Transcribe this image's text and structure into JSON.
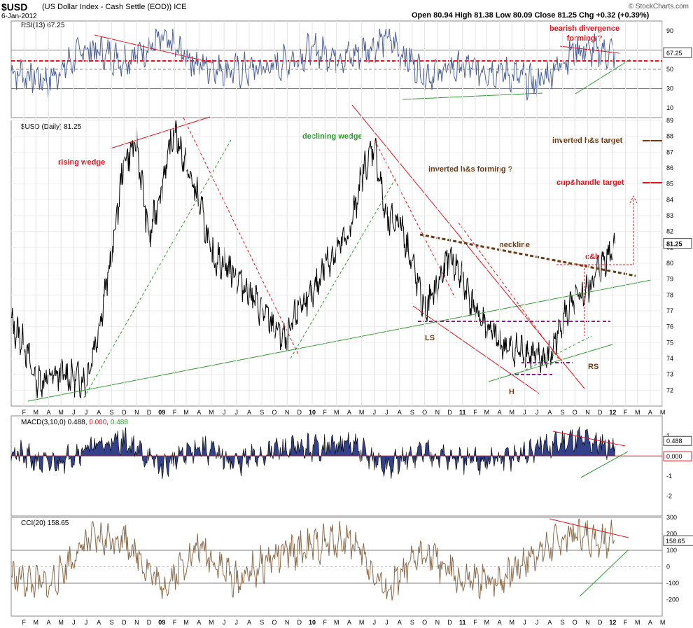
{
  "header": {
    "symbol": "$USD",
    "name": "(US Dollar Index - Cash Settle (EOD)) ICE",
    "date": "6-Jan-2012",
    "ohlc": "Open 80.94  High 81.38  Low 80.09  Close 81.25  Chg +0.32 (+0.39%)",
    "brand": "© StockCharts.com"
  },
  "colors": {
    "price": "#000000",
    "rsi": "#4a5f94",
    "macd_fill": "#33418a",
    "cci": "#8b6b4a",
    "red": "#e8101a",
    "green": "#2e9a2e",
    "brown": "#6b3a10",
    "purple": "#8a1a8a"
  },
  "chart_data": [
    {
      "type": "line",
      "title": "RSI(13) 67.25",
      "ylim": [
        0,
        100
      ],
      "yticks": [
        90,
        70,
        50,
        30,
        10
      ],
      "levels": [
        70,
        50,
        30
      ],
      "last_value_label": "67.25",
      "annotations": [
        "bearish divergence",
        "forming ?"
      ],
      "x": [
        "2008-01",
        "2008-04",
        "2008-07",
        "2008-10",
        "2009-01",
        "2009-04",
        "2009-07",
        "2009-10",
        "2010-01",
        "2010-04",
        "2010-07",
        "2010-10",
        "2011-01",
        "2011-04",
        "2011-07",
        "2011-10",
        "2012-01"
      ],
      "values": [
        48,
        38,
        72,
        60,
        80,
        55,
        48,
        52,
        70,
        62,
        82,
        45,
        52,
        48,
        35,
        70,
        67
      ]
    },
    {
      "type": "line",
      "title": "$USD (Daily) 81.25",
      "ylim": [
        71,
        89
      ],
      "yticks": [
        89,
        88,
        87,
        86,
        85,
        84,
        83,
        82,
        81,
        80,
        79,
        78,
        77,
        76,
        75,
        74,
        73,
        72
      ],
      "last_value_label": "81.25",
      "annotations": {
        "rising_wedge": "rising wedge",
        "declining_wedge": "declining wedge",
        "ihs_forming": "inverted h&s forming ?",
        "ihs_target": "inverted h&s target",
        "cup_target": "cup&handle target",
        "neckline": "neckline",
        "ch": "c&h",
        "ls": "LS",
        "h": "H",
        "rs": "RS"
      },
      "x": [
        "2008-01",
        "2008-02",
        "2008-03",
        "2008-04",
        "2008-05",
        "2008-06",
        "2008-07",
        "2008-08",
        "2008-09",
        "2008-10",
        "2008-11",
        "2008-12",
        "2009-01",
        "2009-02",
        "2009-03",
        "2009-04",
        "2009-05",
        "2009-06",
        "2009-07",
        "2009-08",
        "2009-09",
        "2009-10",
        "2009-11",
        "2009-12",
        "2010-01",
        "2010-02",
        "2010-03",
        "2010-04",
        "2010-05",
        "2010-06",
        "2010-07",
        "2010-08",
        "2010-09",
        "2010-10",
        "2010-11",
        "2010-12",
        "2011-01",
        "2011-02",
        "2011-03",
        "2011-04",
        "2011-05",
        "2011-06",
        "2011-07",
        "2011-08",
        "2011-09",
        "2011-10",
        "2011-11",
        "2011-12",
        "2012-01"
      ],
      "values": [
        76.2,
        75.0,
        72.5,
        72.8,
        73.0,
        72.8,
        72.6,
        76.0,
        80.5,
        86.5,
        87.5,
        81.5,
        85.0,
        88.5,
        86.0,
        84.0,
        80.5,
        80.0,
        79.2,
        78.2,
        77.0,
        76.0,
        75.0,
        77.5,
        77.8,
        80.0,
        80.8,
        81.8,
        85.5,
        87.5,
        82.5,
        82.8,
        80.0,
        77.0,
        78.5,
        80.5,
        79.0,
        77.0,
        76.0,
        75.0,
        74.5,
        74.5,
        74.0,
        74.0,
        76.5,
        77.5,
        78.3,
        79.8,
        81.25
      ],
      "x_axis_labels": [
        "F",
        "M",
        "A",
        "M",
        "J",
        "J",
        "A",
        "S",
        "O",
        "N",
        "D",
        "09",
        "F",
        "M",
        "A",
        "M",
        "J",
        "J",
        "A",
        "S",
        "O",
        "N",
        "D",
        "10",
        "F",
        "M",
        "A",
        "M",
        "J",
        "J",
        "A",
        "S",
        "O",
        "N",
        "D",
        "11",
        "F",
        "M",
        "A",
        "M",
        "J",
        "J",
        "A",
        "S",
        "O",
        "N",
        "D",
        "12",
        "F",
        "M",
        "A",
        "M"
      ]
    },
    {
      "type": "line",
      "title": "MACD(3,10,0) 0.488, 0.000, 0.488",
      "title_parts": [
        "MACD(3,10,0) 0.488, ",
        "0.000",
        ", ",
        "0.488"
      ],
      "ylim": [
        -3,
        2
      ],
      "yticks": [
        1,
        0,
        -1,
        -2
      ],
      "last_value_labels": [
        "0.488",
        "0.000"
      ],
      "x": [
        "2008-01",
        "2008-04",
        "2008-07",
        "2008-10",
        "2009-01",
        "2009-04",
        "2009-07",
        "2009-10",
        "2010-01",
        "2010-04",
        "2010-07",
        "2010-10",
        "2011-01",
        "2011-04",
        "2011-07",
        "2011-10",
        "2012-01"
      ],
      "values": [
        0.2,
        -0.5,
        0.4,
        0.8,
        -0.6,
        0.5,
        -0.4,
        0.3,
        0.4,
        0.6,
        -0.6,
        0.3,
        -0.3,
        -0.2,
        0.3,
        0.9,
        0.488
      ]
    },
    {
      "type": "line",
      "title": "CCI(20) 158.65",
      "ylim": [
        -300,
        300
      ],
      "yticks": [
        300,
        200,
        100,
        0,
        -100,
        -200
      ],
      "levels": [
        100,
        -100
      ],
      "last_value_label": "158.65",
      "x": [
        "2008-01",
        "2008-04",
        "2008-07",
        "2008-10",
        "2009-01",
        "2009-04",
        "2009-07",
        "2009-10",
        "2010-01",
        "2010-04",
        "2010-07",
        "2010-10",
        "2011-01",
        "2011-04",
        "2011-07",
        "2011-10",
        "2012-01"
      ],
      "values": [
        -60,
        -120,
        150,
        180,
        -130,
        120,
        -90,
        60,
        120,
        180,
        -160,
        100,
        -100,
        -80,
        90,
        200,
        158.65
      ]
    }
  ]
}
